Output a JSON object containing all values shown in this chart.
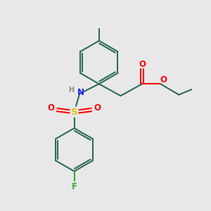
{
  "bg_color": "#e8e8e8",
  "bond_color": "#2f6b5a",
  "atom_colors": {
    "N": "#2020ff",
    "O": "#ff0000",
    "S": "#cccc00",
    "F": "#33aa33",
    "H": "#888888",
    "C": "#2f6b5a"
  },
  "line_width": 1.5,
  "scale": 1.0
}
